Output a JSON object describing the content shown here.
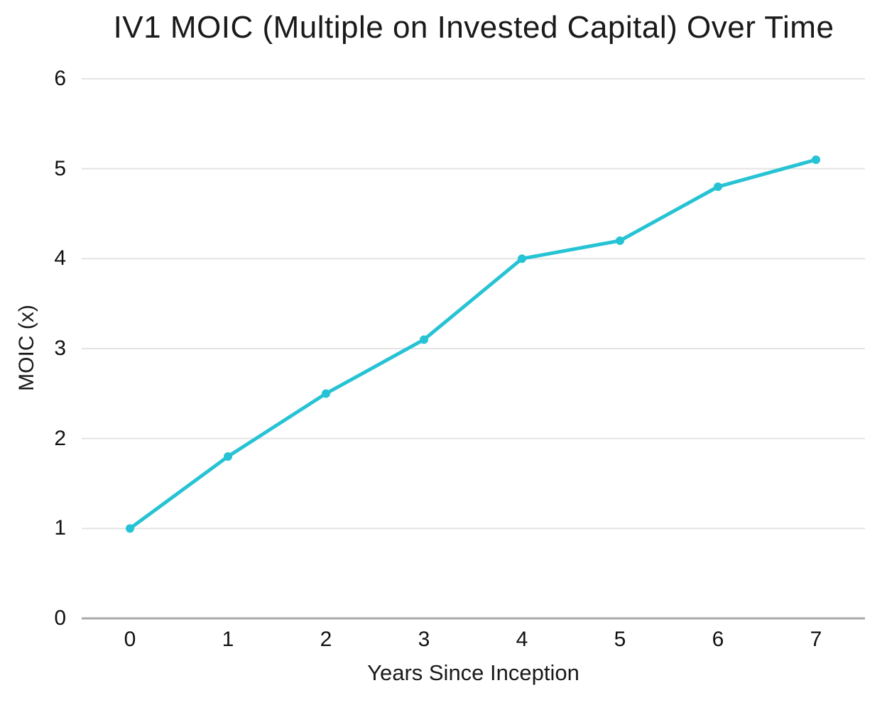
{
  "chart": {
    "title": "IV1 MOIC (Multiple on Invested Capital) Over Time",
    "xlabel": "Years Since Inception",
    "ylabel": "MOIC (x)"
  },
  "chart_data": {
    "type": "line",
    "title": "IV1 MOIC (Multiple on Invested Capital) Over Time",
    "xlabel": "Years Since Inception",
    "ylabel": "MOIC (x)",
    "x": [
      0,
      1,
      2,
      3,
      4,
      5,
      6,
      7
    ],
    "x_tick_labels": [
      "0",
      "1",
      "2",
      "3",
      "4",
      "5",
      "6",
      "7"
    ],
    "series": [
      {
        "name": "IV1 MOIC",
        "values": [
          1.0,
          1.8,
          2.5,
          3.1,
          4.0,
          4.2,
          4.8,
          5.1
        ]
      }
    ],
    "y_ticks": [
      0,
      1,
      2,
      3,
      4,
      5,
      6
    ],
    "y_tick_labels": [
      "0",
      "1",
      "2",
      "3",
      "4",
      "5",
      "6"
    ],
    "ylim": [
      0,
      6
    ],
    "xlim": [
      0,
      7
    ],
    "grid": true,
    "legend": false,
    "marker": "circle"
  },
  "colors": {
    "line": "#26C3D5",
    "gridline": "#e3e3e3",
    "axis_line": "#a9a9a9",
    "text": "#111111",
    "background": "#ffffff"
  }
}
